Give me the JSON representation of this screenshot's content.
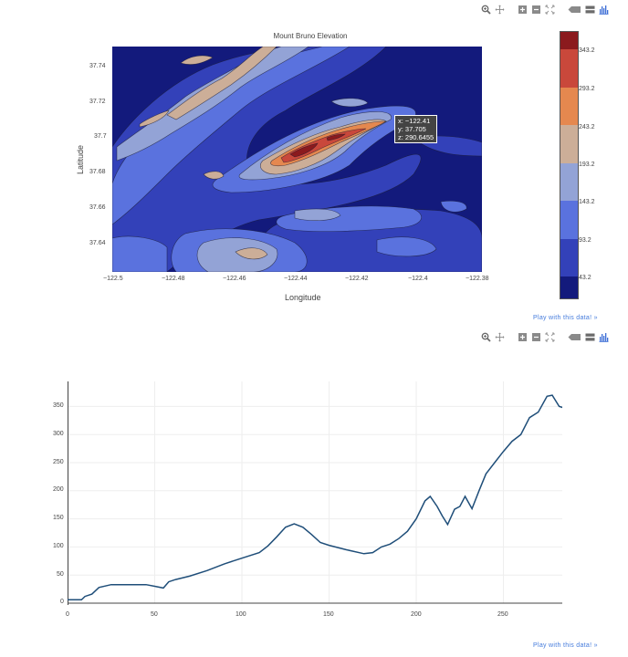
{
  "modebar_top": {
    "buttons": [
      {
        "name": "zoom-icon",
        "glyph": "zoom"
      },
      {
        "name": "pan-icon",
        "glyph": "pan"
      },
      {
        "name": "zoom-in-icon",
        "glyph": "plus-box"
      },
      {
        "name": "zoom-out-icon",
        "glyph": "minus-box"
      },
      {
        "name": "autoscale-icon",
        "glyph": "expand"
      },
      {
        "name": "hover-closest-icon",
        "glyph": "tag"
      },
      {
        "name": "hover-compare-icon",
        "glyph": "bars"
      },
      {
        "name": "plotly-logo-icon",
        "glyph": "logo"
      }
    ]
  },
  "contour": {
    "title": "Mount Bruno Elevation",
    "xlabel": "Longitude",
    "ylabel": "Latitude",
    "xticks": [
      "−122.5",
      "−122.48",
      "−122.46",
      "−122.44",
      "−122.42",
      "−122.4",
      "−122.38"
    ],
    "yticks": [
      "37.74",
      "37.72",
      "37.7",
      "37.68",
      "37.66",
      "37.64"
    ],
    "colorbar": {
      "ticks": [
        "343.2",
        "293.2",
        "243.2",
        "193.2",
        "143.2",
        "93.2",
        "43.2"
      ],
      "colors": [
        "#8b1a1e",
        "#c9483b",
        "#e5884f",
        "#ccae98",
        "#93a3d6",
        "#5a72de",
        "#3341b9",
        "#131a7c"
      ]
    },
    "tooltip": {
      "x": "x: −122.41",
      "y": "y: 37.705",
      "z": "z: 290.6455"
    }
  },
  "play_link_1": "Play with this data! »",
  "line": {
    "xticks": [
      "0",
      "50",
      "100",
      "150",
      "200",
      "250"
    ],
    "yticks": [
      "0",
      "50",
      "100",
      "150",
      "200",
      "250",
      "300",
      "350"
    ],
    "line_color": "#1f4e79"
  },
  "play_link_2": "Play with this data! »",
  "chart_data": [
    {
      "type": "heatmap",
      "subtype": "contour",
      "title": "Mount Bruno Elevation",
      "xlabel": "Longitude",
      "ylabel": "Latitude",
      "xlim": [
        -122.5,
        -122.38
      ],
      "ylim": [
        37.627,
        37.75
      ],
      "x_tick_labels": [
        -122.5,
        -122.48,
        -122.46,
        -122.44,
        -122.42,
        -122.4,
        -122.38
      ],
      "y_tick_labels": [
        37.64,
        37.66,
        37.68,
        37.7,
        37.72,
        37.74
      ],
      "colorbar_levels": [
        43.2,
        93.2,
        143.2,
        193.2,
        243.2,
        293.2,
        343.2
      ],
      "colorscale": [
        "#131a7c",
        "#3341b9",
        "#5a72de",
        "#93a3d6",
        "#ccae98",
        "#e5884f",
        "#c9483b",
        "#8b1a1e"
      ],
      "annotations": [
        {
          "text": "x: -122.41, y: 37.705, z: 290.6455",
          "x": -122.41,
          "y": 37.705
        }
      ],
      "features": [
        {
          "desc": "main ridge peak (>343)",
          "x": -122.438,
          "y": 37.692
        },
        {
          "desc": "ridge extending NE",
          "from": [
            -122.45,
            37.69
          ],
          "to": [
            -122.405,
            37.706
          ]
        },
        {
          "desc": "NW highland band",
          "from": [
            -122.5,
            37.7
          ],
          "to": [
            -122.455,
            37.75
          ]
        },
        {
          "desc": "south highlands",
          "x": -122.46,
          "y": 37.64
        }
      ]
    },
    {
      "type": "line",
      "title": "",
      "xlabel": "",
      "ylabel": "",
      "xlim": [
        0,
        284
      ],
      "ylim": [
        0,
        390
      ],
      "grid": true,
      "x": [
        0,
        8,
        10,
        14,
        18,
        25,
        35,
        45,
        50,
        55,
        58,
        62,
        70,
        80,
        90,
        100,
        110,
        115,
        120,
        125,
        130,
        135,
        140,
        145,
        150,
        160,
        170,
        175,
        180,
        185,
        190,
        195,
        200,
        205,
        208,
        212,
        215,
        218,
        222,
        225,
        228,
        232,
        236,
        240,
        245,
        250,
        255,
        260,
        265,
        270,
        275,
        278,
        282,
        284
      ],
      "y": [
        6,
        6,
        12,
        16,
        28,
        33,
        33,
        33,
        30,
        27,
        38,
        42,
        48,
        58,
        70,
        80,
        90,
        102,
        118,
        135,
        141,
        135,
        122,
        108,
        103,
        95,
        88,
        90,
        100,
        105,
        115,
        128,
        150,
        182,
        190,
        172,
        155,
        140,
        167,
        172,
        190,
        168,
        200,
        230,
        250,
        270,
        288,
        300,
        330,
        340,
        368,
        370,
        350,
        348
      ]
    }
  ]
}
